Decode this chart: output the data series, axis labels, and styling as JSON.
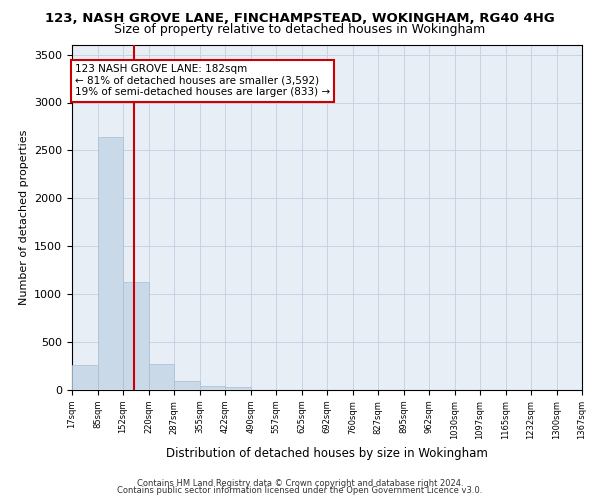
{
  "title": "123, NASH GROVE LANE, FINCHAMPSTEAD, WOKINGHAM, RG40 4HG",
  "subtitle": "Size of property relative to detached houses in Wokingham",
  "xlabel": "Distribution of detached houses by size in Wokingham",
  "ylabel": "Number of detached properties",
  "footnote1": "Contains HM Land Registry data © Crown copyright and database right 2024.",
  "footnote2": "Contains public sector information licensed under the Open Government Licence v3.0.",
  "bar_color": "#c9d9e8",
  "bar_edge_color": "#a8bfd0",
  "grid_color": "#c8d4e4",
  "vline_color": "#cc0000",
  "vline_x": 182,
  "annotation_line1": "123 NASH GROVE LANE: 182sqm",
  "annotation_line2": "← 81% of detached houses are smaller (3,592)",
  "annotation_line3": "19% of semi-detached houses are larger (833) →",
  "annotation_box_color": "#ffffff",
  "annotation_box_edge": "#cc0000",
  "bin_edges": [
    17,
    85,
    152,
    220,
    287,
    355,
    422,
    490,
    557,
    625,
    692,
    760,
    827,
    895,
    962,
    1030,
    1097,
    1165,
    1232,
    1300,
    1367
  ],
  "bin_labels": [
    "17sqm",
    "85sqm",
    "152sqm",
    "220sqm",
    "287sqm",
    "355sqm",
    "422sqm",
    "490sqm",
    "557sqm",
    "625sqm",
    "692sqm",
    "760sqm",
    "827sqm",
    "895sqm",
    "962sqm",
    "1030sqm",
    "1097sqm",
    "1165sqm",
    "1232sqm",
    "1300sqm",
    "1367sqm"
  ],
  "bar_heights": [
    260,
    2640,
    1130,
    270,
    90,
    45,
    30,
    0,
    0,
    0,
    0,
    0,
    0,
    0,
    0,
    0,
    0,
    0,
    0,
    0
  ],
  "ylim": [
    0,
    3600
  ],
  "yticks": [
    0,
    500,
    1000,
    1500,
    2000,
    2500,
    3000,
    3500
  ],
  "background_color": "#e8eef6",
  "title_fontsize": 9.5,
  "subtitle_fontsize": 9,
  "ylabel_fontsize": 8,
  "xlabel_fontsize": 8.5,
  "ytick_fontsize": 8,
  "xtick_fontsize": 6
}
